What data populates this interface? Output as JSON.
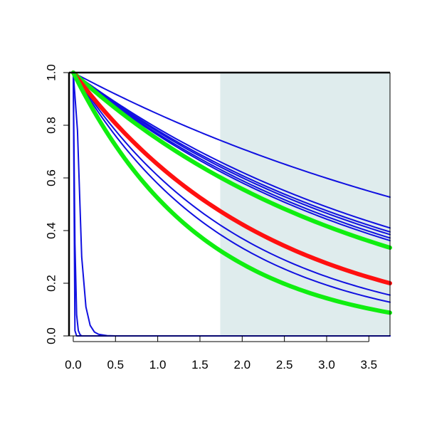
{
  "chart_data": {
    "type": "line",
    "title": "",
    "xlabel": "",
    "ylabel": "",
    "xlim": [
      -0.05,
      3.75
    ],
    "ylim": [
      0,
      1
    ],
    "x_ticks": [
      0.0,
      0.5,
      1.0,
      1.5,
      2.0,
      2.5,
      3.0,
      3.5
    ],
    "x_tick_labels": [
      "0.0",
      "0.5",
      "1.0",
      "1.5",
      "2.0",
      "2.5",
      "3.0",
      "3.5"
    ],
    "y_ticks": [
      0.0,
      0.2,
      0.4,
      0.6,
      0.8,
      1.0
    ],
    "y_tick_labels": [
      "0.0",
      "0.2",
      "0.4",
      "0.6",
      "0.8",
      "1.0"
    ],
    "grid": false,
    "legend": "none",
    "shaded_region": {
      "x_start": 1.74,
      "x_end": 3.75,
      "color": "#dfeced"
    },
    "colors": {
      "blue": "#1010e0",
      "green": "#10ee10",
      "red": "#ff1010"
    },
    "series": [
      {
        "color": "blue",
        "emphasis": "thin",
        "x": [
          0,
          3.75
        ],
        "y": [
          1.0,
          0.527
        ]
      },
      {
        "color": "blue",
        "emphasis": "thin",
        "x": [
          0,
          3.75
        ],
        "y": [
          1.0,
          0.41
        ]
      },
      {
        "color": "blue",
        "emphasis": "thin",
        "x": [
          0,
          3.75
        ],
        "y": [
          1.0,
          0.395
        ]
      },
      {
        "color": "blue",
        "emphasis": "thin",
        "x": [
          0,
          3.75
        ],
        "y": [
          1.0,
          0.385
        ]
      },
      {
        "color": "blue",
        "emphasis": "thin",
        "x": [
          0,
          3.75
        ],
        "y": [
          1.0,
          0.372
        ]
      },
      {
        "color": "blue",
        "emphasis": "thin",
        "x": [
          0,
          3.75
        ],
        "y": [
          1.0,
          0.362
        ]
      },
      {
        "color": "green",
        "emphasis": "thick",
        "x": [
          0,
          3.75
        ],
        "y": [
          1.0,
          0.335
        ]
      },
      {
        "color": "red",
        "emphasis": "thick",
        "x": [
          0,
          3.75
        ],
        "y": [
          1.0,
          0.2
        ]
      },
      {
        "color": "blue",
        "emphasis": "thin",
        "x": [
          0,
          3.75
        ],
        "y": [
          1.0,
          0.155
        ]
      },
      {
        "color": "blue",
        "emphasis": "thin",
        "x": [
          0,
          3.75
        ],
        "y": [
          1.0,
          0.128
        ]
      },
      {
        "color": "green",
        "emphasis": "thick",
        "x": [
          0,
          3.75
        ],
        "y": [
          1.0,
          0.088
        ]
      },
      {
        "color": "blue",
        "emphasis": "thin",
        "x": [
          0,
          0.05,
          0.1,
          0.15,
          0.2,
          0.25,
          0.3,
          0.4,
          0.5,
          3.75
        ],
        "y": [
          1.0,
          0.78,
          0.3,
          0.11,
          0.04,
          0.015,
          0.006,
          0.001,
          0.0,
          0.0
        ]
      },
      {
        "color": "blue",
        "emphasis": "thin",
        "x": [
          0,
          0.02,
          0.04,
          0.06,
          0.08,
          0.1,
          3.75
        ],
        "y": [
          1.0,
          0.35,
          0.08,
          0.02,
          0.005,
          0.0,
          0.0
        ]
      },
      {
        "color": "blue",
        "emphasis": "thin",
        "x": [
          0,
          0.02,
          0.04,
          3.75
        ],
        "y": [
          1.0,
          0.02,
          0.0,
          0.0
        ]
      }
    ]
  }
}
